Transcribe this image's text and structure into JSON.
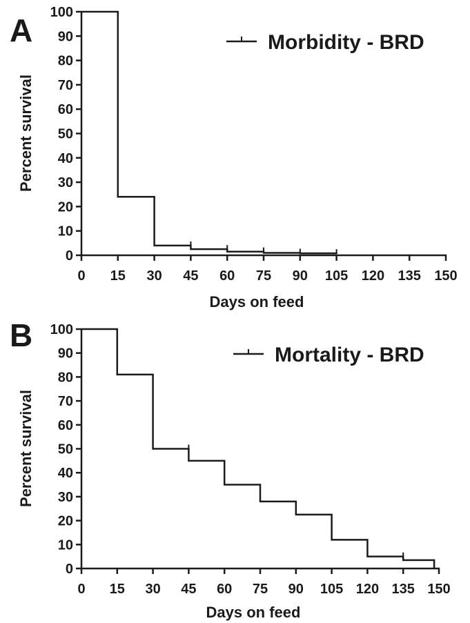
{
  "chart_data": [
    {
      "panel_label": "A",
      "type": "line",
      "step": true,
      "legend": {
        "label": "Morbidity - BRD",
        "position": "top-right"
      },
      "xlabel": "Days on feed",
      "ylabel": "Percent survival",
      "xlim": [
        0,
        150
      ],
      "ylim": [
        0,
        100
      ],
      "xticks": [
        0,
        15,
        30,
        45,
        60,
        75,
        90,
        105,
        120,
        135,
        150
      ],
      "yticks": [
        0,
        10,
        20,
        30,
        40,
        50,
        60,
        70,
        80,
        90,
        100
      ],
      "grid": false,
      "series": [
        {
          "x": [
            0,
            15,
            30,
            45,
            60,
            75,
            90,
            105
          ],
          "y": [
            100,
            24,
            4,
            2.5,
            1.5,
            1,
            0.8,
            0.5
          ],
          "censored_x": [
            45,
            60,
            75,
            90,
            105
          ]
        }
      ]
    },
    {
      "panel_label": "B",
      "type": "line",
      "step": true,
      "legend": {
        "label": "Mortality - BRD",
        "position": "top-right"
      },
      "xlabel": "Days on feed",
      "ylabel": "Percent survival",
      "xlim": [
        0,
        150
      ],
      "ylim": [
        0,
        100
      ],
      "xticks": [
        0,
        15,
        30,
        45,
        60,
        75,
        90,
        105,
        120,
        135,
        150
      ],
      "yticks": [
        0,
        10,
        20,
        30,
        40,
        50,
        60,
        70,
        80,
        90,
        100
      ],
      "grid": false,
      "series": [
        {
          "x": [
            0,
            15,
            30,
            45,
            60,
            75,
            90,
            105,
            120,
            135,
            148
          ],
          "y": [
            100,
            81,
            50,
            45,
            35,
            28,
            22.5,
            12,
            5,
            3.5,
            0
          ],
          "censored_x": [
            45,
            135
          ]
        }
      ]
    }
  ],
  "colors": {
    "line": "#1a1a1a",
    "background": "#ffffff"
  }
}
